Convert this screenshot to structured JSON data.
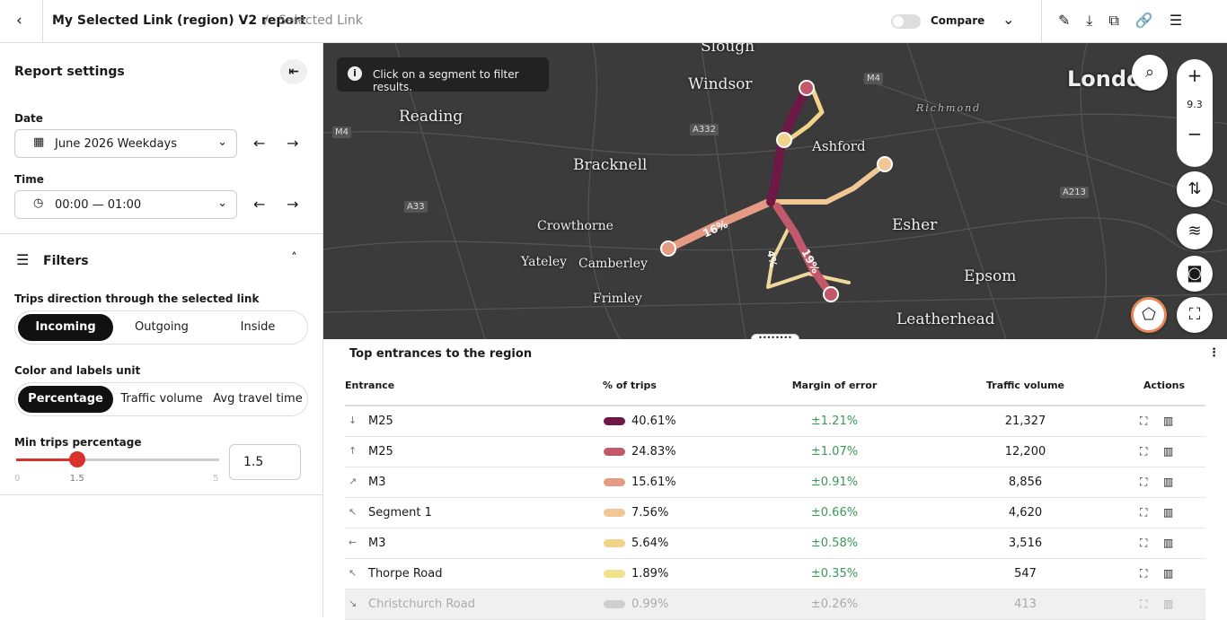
{
  "header": {
    "title": "My Selected Link (region) V2 report",
    "separator": "/",
    "breadcrumb": "Selected Link",
    "compare": "Compare"
  },
  "sidebar": {
    "title": "Report settings",
    "date": {
      "label": "Date",
      "value": "June 2026 Weekdays"
    },
    "time": {
      "label": "Time",
      "value": "00:00 — 01:00"
    },
    "filters": "Filters",
    "direction": {
      "label": "Trips direction through the selected link",
      "options": [
        "Incoming",
        "Outgoing",
        "Inside"
      ]
    },
    "unit": {
      "label": "Color and labels unit",
      "options": [
        "Percentage",
        "Traffic volume",
        "Avg travel time"
      ]
    },
    "min_trips": {
      "label": "Min trips percentage",
      "min": 0,
      "value": 1.5,
      "max": 5,
      "input": "1.5"
    }
  },
  "map": {
    "info": "Click on a segment to filter results.",
    "zoom": "9.3",
    "labels": [
      "Slough",
      "Windsor",
      "Reading",
      "Bracknell",
      "Ashford",
      "London",
      "Crowthorne",
      "Yateley",
      "Camberley",
      "Frimley",
      "Esher",
      "Epsom",
      "Leatherhead",
      "Richmond"
    ],
    "roads": [
      "M4",
      "A332",
      "A33",
      "M4",
      "A213"
    ],
    "route_labels": [
      "16%",
      "19%",
      "4%"
    ]
  },
  "table": {
    "title": "Top entrances to the region",
    "columns": [
      "Entrance",
      "% of trips",
      "Margin of error",
      "Traffic volume",
      "Actions"
    ],
    "rows": [
      {
        "entrance": "M25",
        "pct": "40.61%",
        "margin": "±1.21%",
        "volume": "21,327",
        "color": "#6e1846"
      },
      {
        "entrance": "M25",
        "pct": "24.83%",
        "margin": "±1.07%",
        "volume": "12,200",
        "color": "#c2596b"
      },
      {
        "entrance": "M3",
        "pct": "15.61%",
        "margin": "±0.91%",
        "volume": "8,856",
        "color": "#e59a84"
      },
      {
        "entrance": "Segment 1",
        "pct": "7.56%",
        "margin": "±0.66%",
        "volume": "4,620",
        "color": "#f0c795"
      },
      {
        "entrance": "M3",
        "pct": "5.64%",
        "margin": "±0.58%",
        "volume": "3,516",
        "color": "#f2d38a"
      },
      {
        "entrance": "Thorpe Road",
        "pct": "1.89%",
        "margin": "±0.35%",
        "volume": "547",
        "color": "#f3e08a"
      },
      {
        "entrance": "Christchurch Road",
        "pct": "0.99%",
        "margin": "±0.26%",
        "volume": "413",
        "color": "#cfcfcf"
      }
    ]
  }
}
